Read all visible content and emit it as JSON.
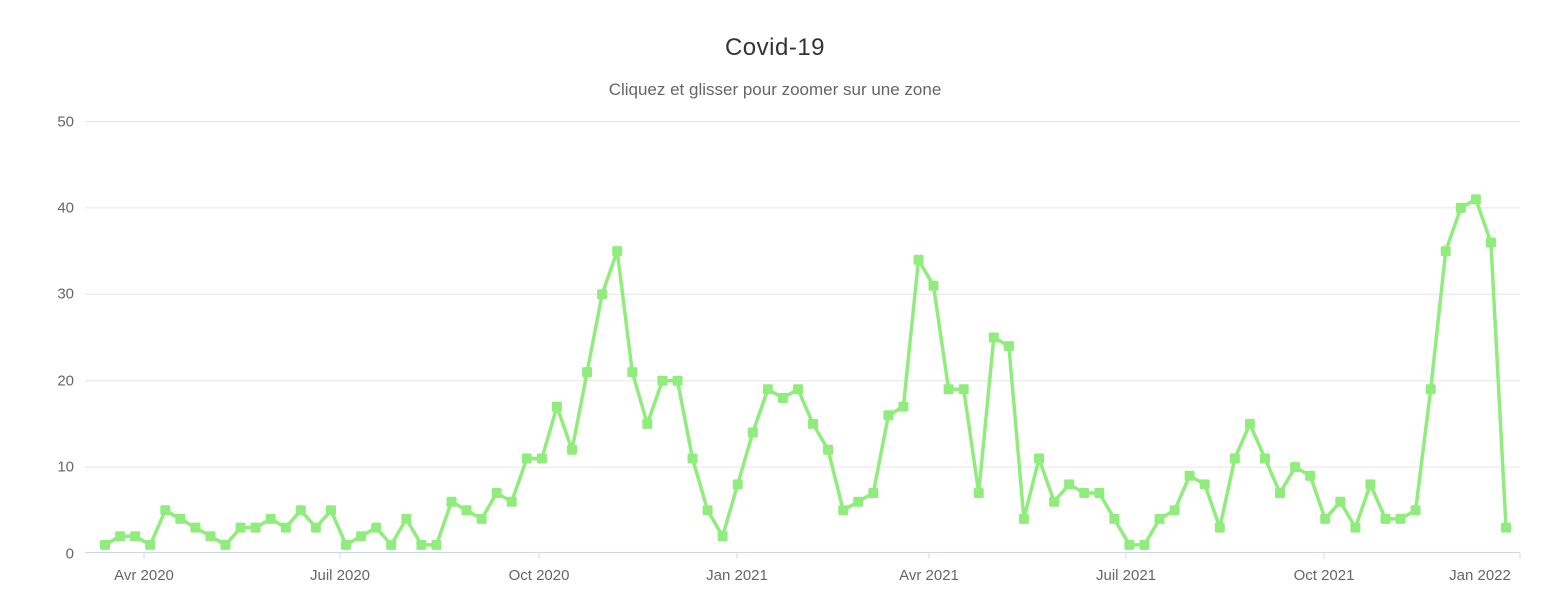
{
  "header": {
    "title": "Covid-19",
    "subtitle": "Cliquez et glisser pour zoomer sur une zone"
  },
  "chart_data": {
    "type": "line",
    "title": "Covid-19",
    "subtitle": "Cliquez et glisser pour zoomer sur une zone",
    "xlabel": "",
    "ylabel": "",
    "ylim": [
      0,
      50
    ],
    "y_ticks": [
      0,
      10,
      20,
      30,
      40,
      50
    ],
    "x_tick_labels": [
      "Avr 2020",
      "Juil 2020",
      "Oct 2020",
      "Jan 2021",
      "Avr 2021",
      "Juil 2021",
      "Oct 2021",
      "Jan 2022"
    ],
    "grid": "horizontal",
    "legend": "none",
    "series": [
      {
        "name": "Covid-19",
        "marker": "square",
        "color": "#90ed7d",
        "values": [
          1,
          2,
          2,
          1,
          5,
          4,
          3,
          2,
          1,
          3,
          3,
          4,
          3,
          5,
          3,
          5,
          1,
          2,
          3,
          1,
          4,
          1,
          1,
          6,
          5,
          4,
          7,
          6,
          11,
          11,
          17,
          12,
          21,
          30,
          35,
          21,
          15,
          20,
          20,
          11,
          5,
          2,
          8,
          14,
          19,
          18,
          19,
          15,
          12,
          5,
          6,
          7,
          16,
          17,
          34,
          31,
          19,
          19,
          7,
          25,
          24,
          4,
          11,
          6,
          8,
          7,
          7,
          4,
          1,
          1,
          4,
          5,
          9,
          8,
          3,
          11,
          15,
          11,
          7,
          10,
          9,
          4,
          6,
          3,
          8,
          4,
          4,
          5,
          19,
          35,
          40,
          41,
          36,
          3
        ]
      }
    ],
    "colors": {
      "series": "#90ed7d",
      "grid": "#e6e6e6",
      "axis_line": "#ccd6eb",
      "tick_label": "#666666",
      "title": "#333333",
      "subtitle": "#666666",
      "background": "#ffffff"
    }
  }
}
